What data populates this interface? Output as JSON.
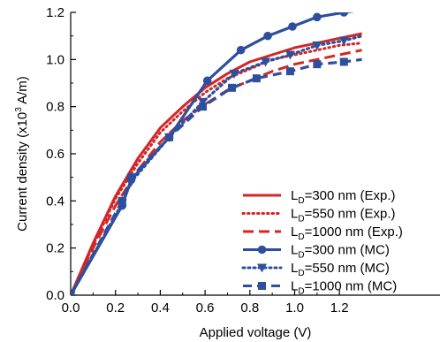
{
  "chart_data": {
    "type": "line",
    "title": "",
    "xlabel": "Applied voltage (V)",
    "ylabel_prefix": "Current density (x10",
    "ylabel_sup": "3",
    "ylabel_suffix": " A/m)",
    "xlim": [
      0,
      1.3
    ],
    "ylim": [
      0,
      1.2
    ],
    "xticks": [
      "0.0",
      "0.2",
      "0.4",
      "0.6",
      "0.8",
      "1.0",
      "1.2"
    ],
    "yticks": [
      "0.0",
      "0.2",
      "0.4",
      "0.6",
      "0.8",
      "1.0",
      "1.2"
    ],
    "grid": false,
    "legend_position": "bottom-right",
    "color": "#d42626",
    "color_mc": "#2e4f9e",
    "series": [
      {
        "name_main": "L",
        "name_sub": "D",
        "name_rest": "=300 nm (Exp.)",
        "style": "solid",
        "kind": "exp",
        "x": [
          0,
          0.1,
          0.2,
          0.3,
          0.4,
          0.5,
          0.6,
          0.7,
          0.8,
          0.9,
          1.0,
          1.1,
          1.2,
          1.3
        ],
        "y": [
          0,
          0.22,
          0.42,
          0.58,
          0.71,
          0.8,
          0.88,
          0.94,
          0.99,
          1.02,
          1.05,
          1.07,
          1.09,
          1.11
        ]
      },
      {
        "name_main": "L",
        "name_sub": "D",
        "name_rest": "=550 nm (Exp.)",
        "style": "dotted",
        "kind": "exp",
        "x": [
          0,
          0.1,
          0.2,
          0.3,
          0.4,
          0.5,
          0.6,
          0.7,
          0.8,
          0.9,
          1.0,
          1.1,
          1.2,
          1.3
        ],
        "y": [
          0,
          0.21,
          0.41,
          0.56,
          0.69,
          0.78,
          0.86,
          0.92,
          0.96,
          1.0,
          1.02,
          1.04,
          1.06,
          1.07
        ]
      },
      {
        "name_main": "L",
        "name_sub": "D",
        "name_rest": "=1000 nm (Exp.)",
        "style": "dashed",
        "kind": "exp",
        "x": [
          0,
          0.1,
          0.2,
          0.3,
          0.4,
          0.5,
          0.6,
          0.7,
          0.8,
          0.9,
          1.0,
          1.1,
          1.2,
          1.3
        ],
        "y": [
          0,
          0.2,
          0.38,
          0.53,
          0.65,
          0.74,
          0.81,
          0.87,
          0.91,
          0.95,
          0.98,
          1.0,
          1.02,
          1.04
        ]
      },
      {
        "name_main": "L",
        "name_sub": "D",
        "name_rest": "=300 nm (MC)",
        "style": "solid",
        "kind": "mc",
        "marker": "circle",
        "x": [
          0,
          0.23,
          0.27,
          0.44,
          0.61,
          0.76,
          0.88,
          0.99,
          1.1,
          1.22,
          1.3
        ],
        "y": [
          0,
          0.38,
          0.49,
          0.67,
          0.91,
          1.04,
          1.1,
          1.14,
          1.18,
          1.2,
          1.21
        ]
      },
      {
        "name_main": "L",
        "name_sub": "D",
        "name_rest": "=550 nm (MC)",
        "style": "dotted",
        "kind": "mc",
        "marker": "triangle",
        "x": [
          0,
          0.23,
          0.27,
          0.44,
          0.59,
          0.73,
          0.87,
          0.98,
          1.1,
          1.22,
          1.3
        ],
        "y": [
          0,
          0.39,
          0.48,
          0.67,
          0.82,
          0.94,
          0.99,
          1.02,
          1.06,
          1.08,
          1.1
        ]
      },
      {
        "name_main": "L",
        "name_sub": "D",
        "name_rest": "=1000 nm (MC)",
        "style": "dashed",
        "kind": "mc",
        "marker": "square",
        "x": [
          0,
          0.23,
          0.27,
          0.44,
          0.59,
          0.72,
          0.83,
          0.98,
          1.1,
          1.22,
          1.3
        ],
        "y": [
          0,
          0.4,
          0.5,
          0.67,
          0.8,
          0.88,
          0.92,
          0.95,
          0.98,
          0.99,
          1.0
        ]
      }
    ]
  }
}
